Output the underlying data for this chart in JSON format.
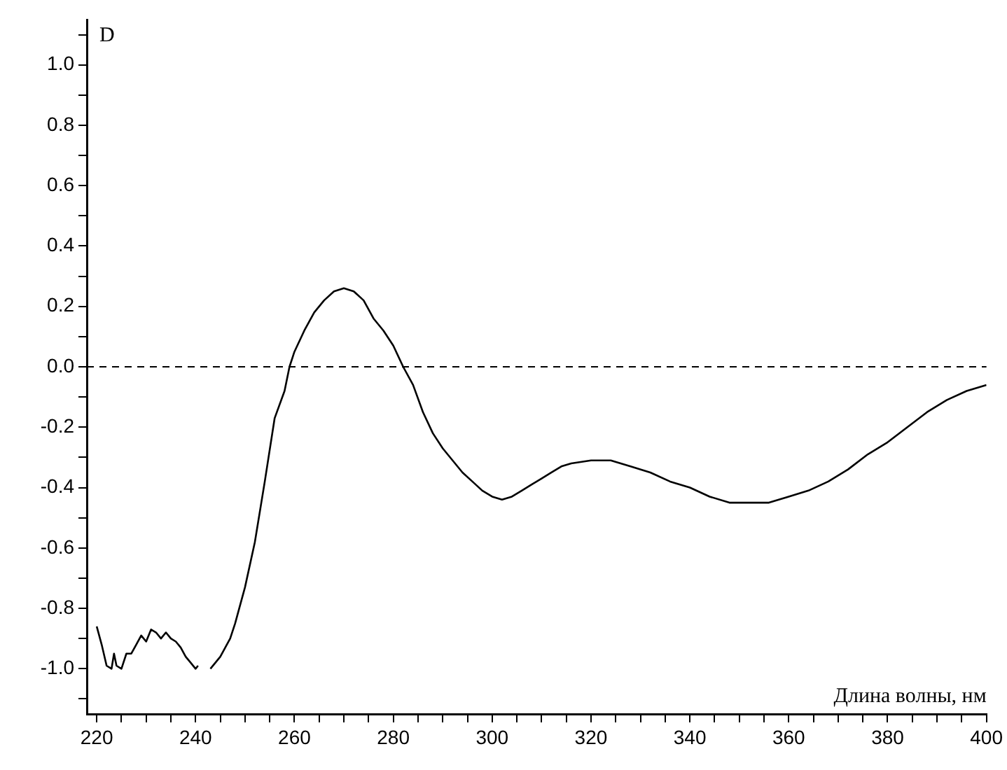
{
  "chart_data": {
    "type": "line",
    "xlabel": "Длина волны, нм",
    "ylabel": "D",
    "x": [
      220,
      221,
      222,
      223,
      223.5,
      224,
      225,
      226,
      227,
      228,
      229,
      230,
      231,
      232,
      233,
      234,
      235,
      236,
      237,
      238,
      239,
      240,
      240.5,
      241.5,
      243,
      245,
      247,
      248,
      250,
      252,
      254,
      256,
      258,
      259,
      260,
      262,
      264,
      266,
      268,
      270,
      272,
      274,
      276,
      278,
      280,
      282,
      284,
      286,
      288,
      290,
      292,
      294,
      296,
      298,
      300,
      302,
      304,
      306,
      308,
      310,
      312,
      314,
      316,
      320,
      324,
      328,
      332,
      336,
      340,
      344,
      348,
      352,
      356,
      360,
      364,
      368,
      372,
      376,
      380,
      384,
      388,
      392,
      396,
      400
    ],
    "series": [
      {
        "color": "#000000",
        "values": [
          -0.86,
          -0.92,
          -0.99,
          -1.0,
          -0.95,
          -0.99,
          -1.0,
          -0.95,
          -0.95,
          -0.92,
          -0.89,
          -0.91,
          -0.87,
          -0.88,
          -0.9,
          -0.88,
          -0.9,
          -0.91,
          -0.93,
          -0.96,
          -0.98,
          -1.0,
          -0.99,
          null,
          -1.0,
          -0.96,
          -0.9,
          -0.85,
          -0.73,
          -0.58,
          -0.38,
          -0.17,
          -0.08,
          0.0,
          0.05,
          0.12,
          0.18,
          0.22,
          0.25,
          0.26,
          0.25,
          0.22,
          0.16,
          0.12,
          0.07,
          0.0,
          -0.06,
          -0.15,
          -0.22,
          -0.27,
          -0.31,
          -0.35,
          -0.38,
          -0.41,
          -0.43,
          -0.44,
          -0.43,
          -0.41,
          -0.39,
          -0.37,
          -0.35,
          -0.33,
          -0.32,
          -0.31,
          -0.31,
          -0.33,
          -0.35,
          -0.38,
          -0.4,
          -0.43,
          -0.45,
          -0.45,
          -0.45,
          -0.43,
          -0.41,
          -0.38,
          -0.34,
          -0.29,
          -0.25,
          -0.2,
          -0.15,
          -0.11,
          -0.08,
          -0.06
        ]
      }
    ],
    "xlim": [
      218,
      400
    ],
    "xticks": [
      220,
      {
        "value": 225,
        "label": null
      },
      {
        "value": 230,
        "label": null
      },
      {
        "value": 235,
        "label": null
      },
      240,
      {
        "value": 245,
        "label": null
      },
      {
        "value": 250,
        "label": null
      },
      {
        "value": 255,
        "label": null
      },
      260,
      {
        "value": 265,
        "label": null
      },
      {
        "value": 270,
        "label": null
      },
      {
        "value": 275,
        "label": null
      },
      280,
      {
        "value": 285,
        "label": null
      },
      {
        "value": 290,
        "label": null
      },
      {
        "value": 295,
        "label": null
      },
      300,
      {
        "value": 305,
        "label": null
      },
      {
        "value": 310,
        "label": null
      },
      {
        "value": 315,
        "label": null
      },
      320,
      {
        "value": 325,
        "label": null
      },
      {
        "value": 330,
        "label": null
      },
      {
        "value": 335,
        "label": null
      },
      340,
      {
        "value": 345,
        "label": null
      },
      {
        "value": 350,
        "label": null
      },
      {
        "value": 355,
        "label": null
      },
      360,
      {
        "value": 365,
        "label": null
      },
      {
        "value": 370,
        "label": null
      },
      {
        "value": 375,
        "label": null
      },
      380,
      {
        "value": 385,
        "label": null
      },
      {
        "value": 390,
        "label": null
      },
      {
        "value": 395,
        "label": null
      },
      400
    ],
    "ylim": [
      -1.15,
      1.15
    ],
    "yticks": [
      {
        "value": -1.1,
        "label": null
      },
      {
        "value": -1.0,
        "label": "-1.0"
      },
      {
        "value": -0.9,
        "label": null
      },
      -0.8,
      {
        "value": -0.7,
        "label": null
      },
      -0.6,
      {
        "value": -0.5,
        "label": null
      },
      -0.4,
      {
        "value": -0.3,
        "label": null
      },
      -0.2,
      {
        "value": -0.1,
        "label": null
      },
      {
        "value": 0,
        "label": "0.0"
      },
      {
        "value": 0.1,
        "label": null
      },
      0.2,
      {
        "value": 0.3,
        "label": null
      },
      0.4,
      {
        "value": 0.5,
        "label": null
      },
      0.6,
      {
        "value": 0.7,
        "label": null
      },
      0.8,
      {
        "value": 0.9,
        "label": null
      },
      {
        "value": 1.0,
        "label": "1.0"
      },
      {
        "value": 1.1,
        "label": null
      }
    ],
    "ref_lines": [
      {
        "axis": "y",
        "value": 0,
        "color": "#000000",
        "line_style": "dashed"
      }
    ],
    "grid": false,
    "legend": false,
    "marker": "none",
    "line_style": "solid"
  }
}
